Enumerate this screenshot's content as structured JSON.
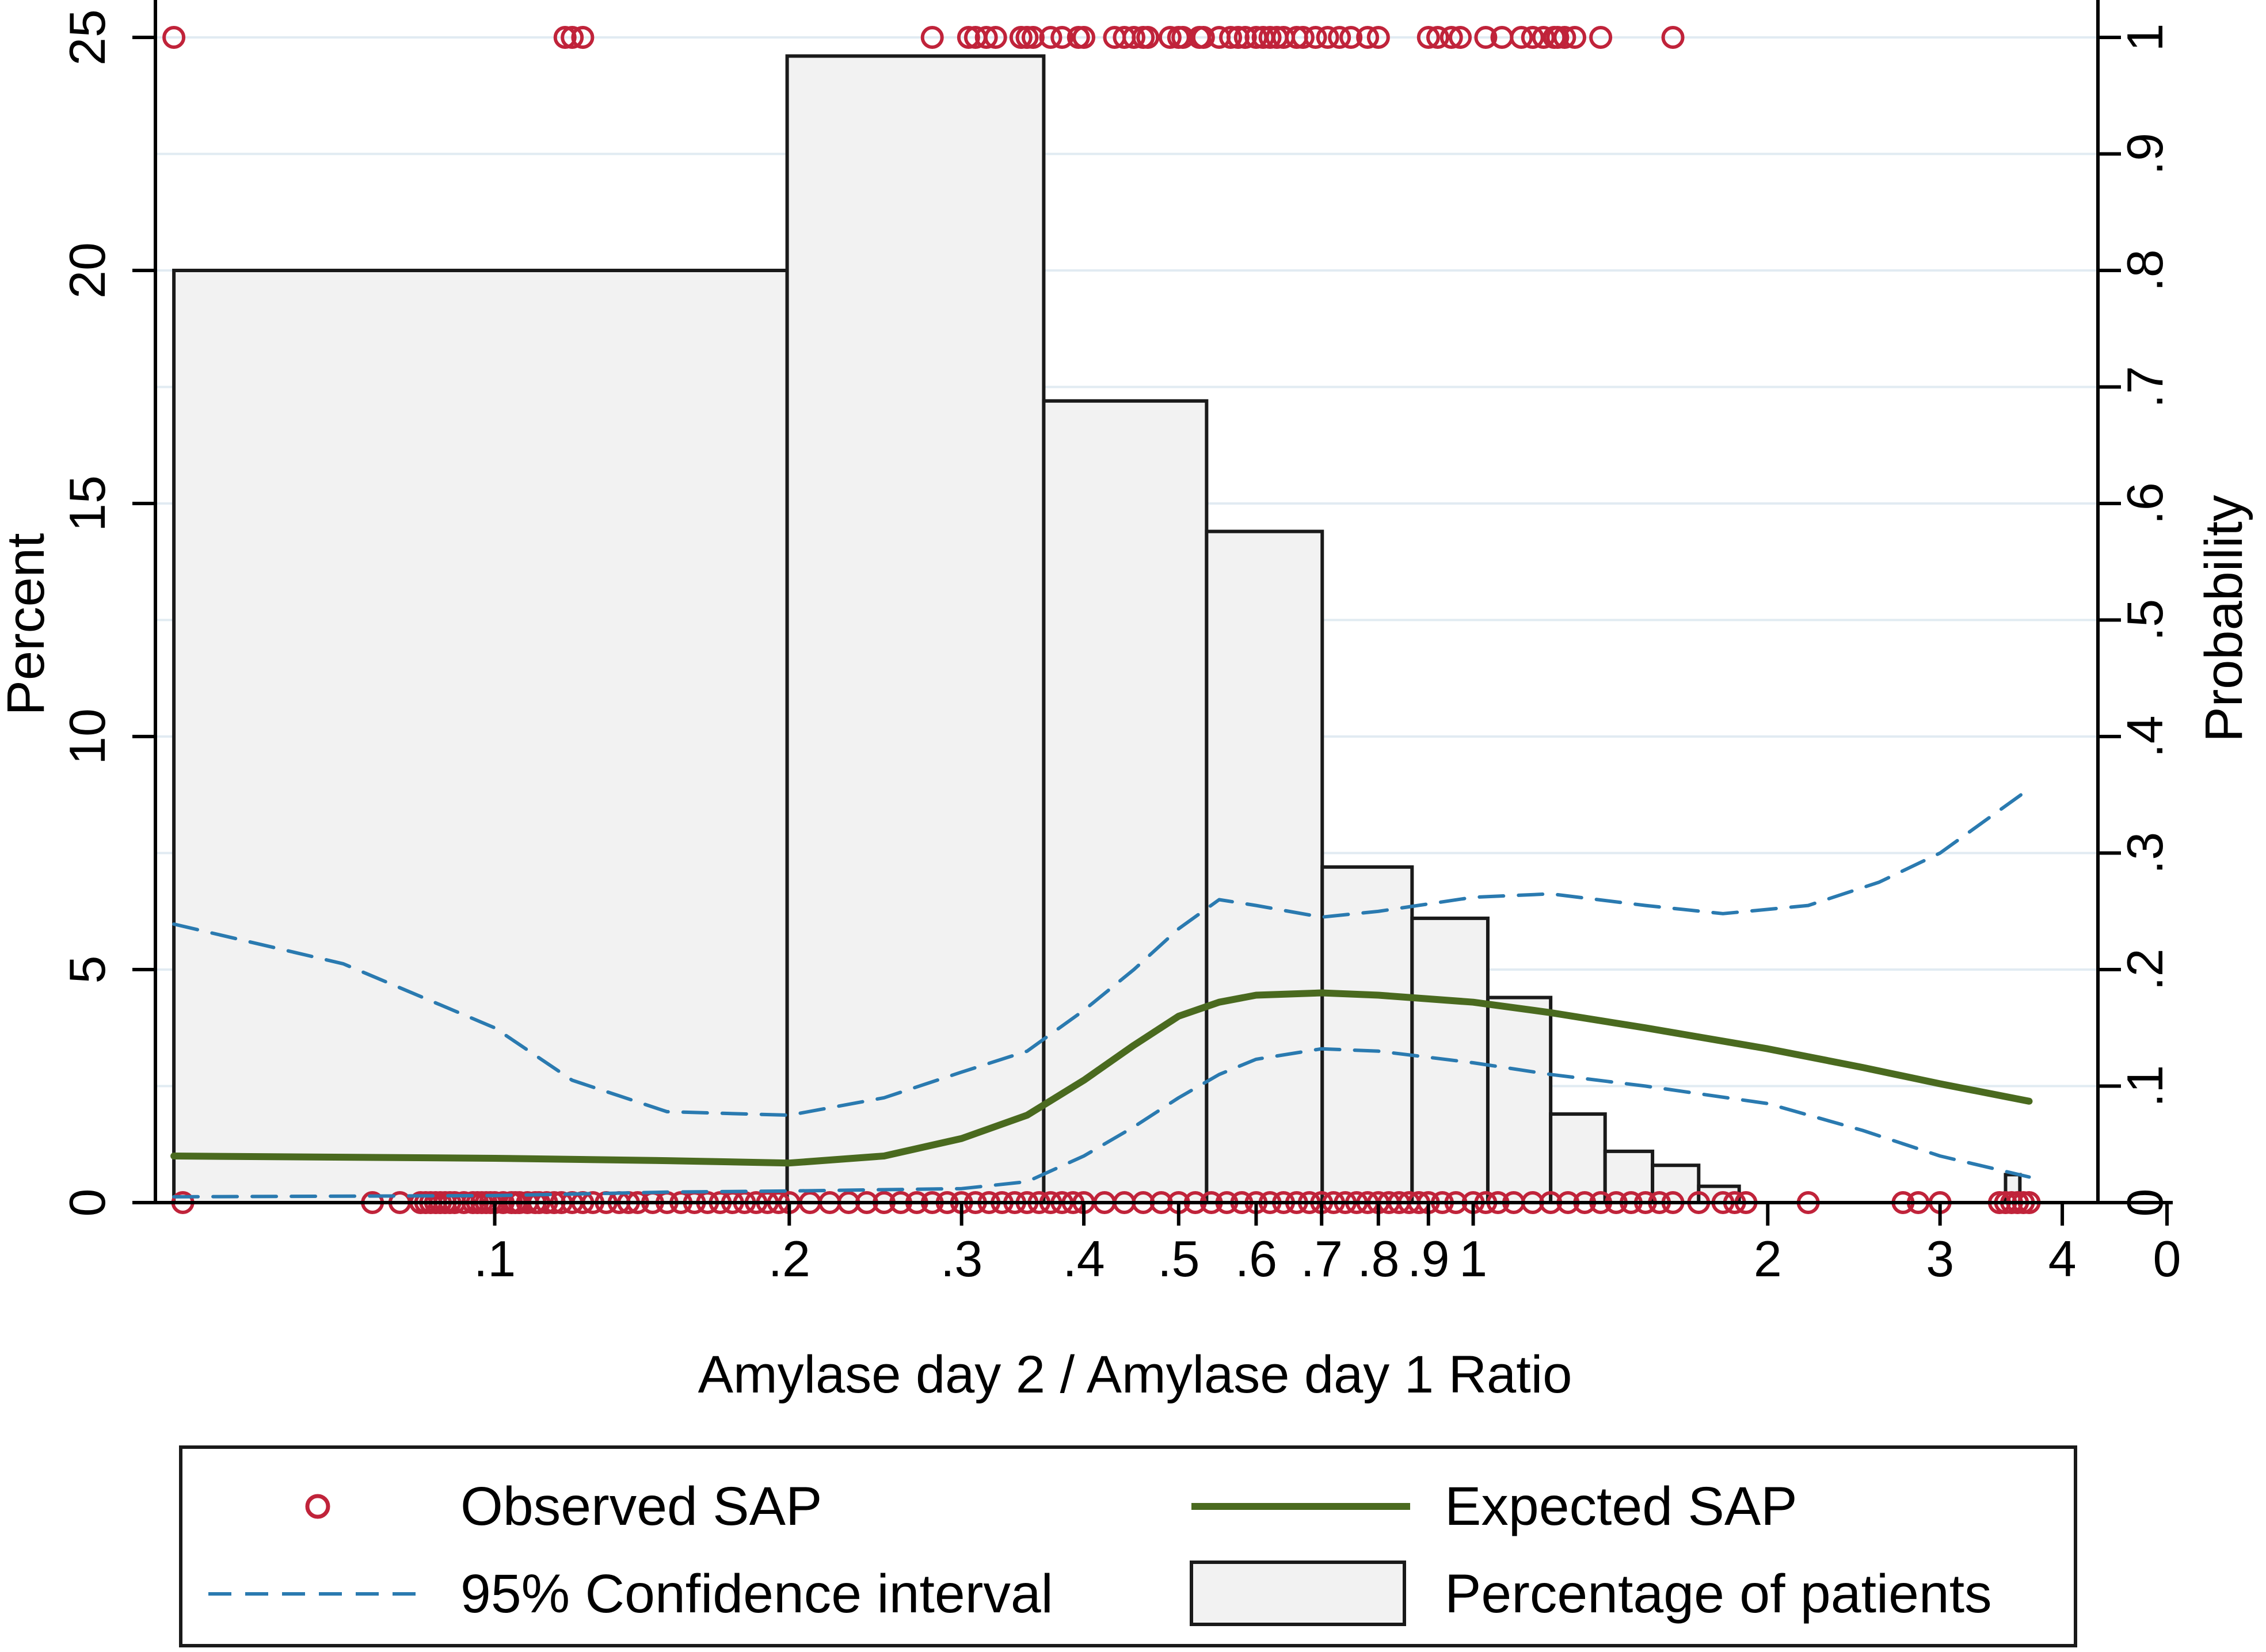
{
  "chart_data": {
    "type": "histogram_with_lines",
    "xlabel": "Amylase day 2 / Amylase day 1 Ratio",
    "ylabel_left": "Percent",
    "ylabel_right": "Probability",
    "x_scale": "log",
    "xlim": [
      0.045,
      4.35
    ],
    "ylim_left": [
      0,
      25
    ],
    "ylim_right": [
      0,
      1
    ],
    "x_ticks": [
      {
        "value": 0.1,
        "label": ".1"
      },
      {
        "value": 0.2,
        "label": ".2"
      },
      {
        "value": 0.3,
        "label": ".3"
      },
      {
        "value": 0.4,
        "label": ".4"
      },
      {
        "value": 0.5,
        "label": ".5"
      },
      {
        "value": 0.6,
        "label": ".6"
      },
      {
        "value": 0.7,
        "label": ".7"
      },
      {
        "value": 0.8,
        "label": ".8"
      },
      {
        "value": 0.9,
        "label": ".9"
      },
      {
        "value": 1.0,
        "label": "1"
      },
      {
        "value": 2,
        "label": "2"
      },
      {
        "value": 3,
        "label": "3"
      },
      {
        "value": 4,
        "label": "4"
      }
    ],
    "x_extra_tick": {
      "label": "0"
    },
    "y_left_ticks": [
      {
        "value": 0,
        "label": "0"
      },
      {
        "value": 5,
        "label": "5"
      },
      {
        "value": 10,
        "label": "10"
      },
      {
        "value": 15,
        "label": "15"
      },
      {
        "value": 20,
        "label": "20"
      },
      {
        "value": 25,
        "label": "25"
      }
    ],
    "y_right_ticks": [
      {
        "value": 0,
        "label": "0"
      },
      {
        "value": 0.1,
        "label": ".1"
      },
      {
        "value": 0.2,
        "label": ".2"
      },
      {
        "value": 0.3,
        "label": ".3"
      },
      {
        "value": 0.4,
        "label": ".4"
      },
      {
        "value": 0.5,
        "label": ".5"
      },
      {
        "value": 0.6,
        "label": ".6"
      },
      {
        "value": 0.7,
        "label": ".7"
      },
      {
        "value": 0.8,
        "label": ".8"
      },
      {
        "value": 0.9,
        "label": ".9"
      },
      {
        "value": 1.0,
        "label": "1"
      }
    ],
    "histogram": {
      "name": "Percentage of patients",
      "bins": [
        {
          "x0": 0.047,
          "x1": 0.199,
          "percent": 20.0
        },
        {
          "x0": 0.199,
          "x1": 0.364,
          "percent": 24.6
        },
        {
          "x0": 0.364,
          "x1": 0.534,
          "percent": 17.2
        },
        {
          "x0": 0.534,
          "x1": 0.701,
          "percent": 14.4
        },
        {
          "x0": 0.701,
          "x1": 0.866,
          "percent": 7.2
        },
        {
          "x0": 0.866,
          "x1": 1.035,
          "percent": 6.1
        },
        {
          "x0": 1.035,
          "x1": 1.2,
          "percent": 4.4
        },
        {
          "x0": 1.2,
          "x1": 1.364,
          "percent": 1.9
        },
        {
          "x0": 1.364,
          "x1": 1.525,
          "percent": 1.1
        },
        {
          "x0": 1.525,
          "x1": 1.7,
          "percent": 0.8
        },
        {
          "x0": 1.7,
          "x1": 1.87,
          "percent": 0.35
        },
        {
          "x0": 3.5,
          "x1": 3.62,
          "percent": 0.6
        }
      ]
    },
    "series": [
      {
        "name": "Expected SAP",
        "style": "solid",
        "color": "#4a6a1f",
        "points": [
          [
            0.047,
            0.04
          ],
          [
            0.1,
            0.038
          ],
          [
            0.15,
            0.036
          ],
          [
            0.2,
            0.034
          ],
          [
            0.25,
            0.04
          ],
          [
            0.3,
            0.055
          ],
          [
            0.35,
            0.075
          ],
          [
            0.4,
            0.105
          ],
          [
            0.45,
            0.135
          ],
          [
            0.5,
            0.16
          ],
          [
            0.55,
            0.172
          ],
          [
            0.6,
            0.178
          ],
          [
            0.7,
            0.18
          ],
          [
            0.8,
            0.178
          ],
          [
            1.0,
            0.172
          ],
          [
            1.2,
            0.163
          ],
          [
            1.5,
            0.15
          ],
          [
            2.0,
            0.132
          ],
          [
            2.5,
            0.116
          ],
          [
            3.0,
            0.102
          ],
          [
            3.7,
            0.087
          ]
        ]
      },
      {
        "name": "95% Confidence interval",
        "style": "dashed",
        "color": "#2a7ab0",
        "points": [
          [
            0.047,
            0.239
          ],
          [
            0.07,
            0.205
          ],
          [
            0.1,
            0.15
          ],
          [
            0.12,
            0.105
          ],
          [
            0.15,
            0.078
          ],
          [
            0.2,
            0.075
          ],
          [
            0.25,
            0.09
          ],
          [
            0.3,
            0.112
          ],
          [
            0.35,
            0.13
          ],
          [
            0.4,
            0.165
          ],
          [
            0.45,
            0.2
          ],
          [
            0.5,
            0.235
          ],
          [
            0.55,
            0.26
          ],
          [
            0.6,
            0.255
          ],
          [
            0.7,
            0.245
          ],
          [
            0.8,
            0.25
          ],
          [
            1.0,
            0.262
          ],
          [
            1.2,
            0.265
          ],
          [
            1.5,
            0.255
          ],
          [
            1.8,
            0.248
          ],
          [
            2.2,
            0.255
          ],
          [
            2.6,
            0.275
          ],
          [
            3.0,
            0.3
          ],
          [
            3.7,
            0.355
          ]
        ]
      },
      {
        "name": "95% Confidence interval (lower)",
        "style": "dashed",
        "color": "#2a7ab0",
        "points": [
          [
            0.047,
            0.005
          ],
          [
            0.1,
            0.006
          ],
          [
            0.15,
            0.009
          ],
          [
            0.2,
            0.01
          ],
          [
            0.3,
            0.012
          ],
          [
            0.35,
            0.018
          ],
          [
            0.4,
            0.04
          ],
          [
            0.45,
            0.065
          ],
          [
            0.5,
            0.09
          ],
          [
            0.55,
            0.11
          ],
          [
            0.6,
            0.123
          ],
          [
            0.7,
            0.132
          ],
          [
            0.8,
            0.13
          ],
          [
            1.0,
            0.12
          ],
          [
            1.2,
            0.11
          ],
          [
            1.5,
            0.1
          ],
          [
            2.0,
            0.085
          ],
          [
            2.5,
            0.062
          ],
          [
            3.0,
            0.04
          ],
          [
            3.7,
            0.022
          ]
        ]
      }
    ],
    "observed": {
      "name": "Observed SAP",
      "color": "#c0233a",
      "ones": [
        0.047,
        0.118,
        0.12,
        0.123,
        0.28,
        0.305,
        0.31,
        0.318,
        0.325,
        0.345,
        0.35,
        0.355,
        0.37,
        0.38,
        0.395,
        0.4,
        0.43,
        0.44,
        0.45,
        0.46,
        0.465,
        0.49,
        0.5,
        0.505,
        0.525,
        0.53,
        0.55,
        0.565,
        0.575,
        0.585,
        0.6,
        0.61,
        0.62,
        0.63,
        0.64,
        0.66,
        0.67,
        0.69,
        0.71,
        0.73,
        0.75,
        0.78,
        0.8,
        0.9,
        0.92,
        0.95,
        0.97,
        1.03,
        1.07,
        1.12,
        1.15,
        1.18,
        1.21,
        1.22,
        1.24,
        1.27,
        1.35,
        1.6
      ],
      "zeros": [
        0.048,
        0.075,
        0.08,
        0.084,
        0.085,
        0.086,
        0.087,
        0.088,
        0.089,
        0.09,
        0.091,
        0.093,
        0.095,
        0.096,
        0.097,
        0.098,
        0.099,
        0.1,
        0.102,
        0.104,
        0.105,
        0.106,
        0.108,
        0.11,
        0.111,
        0.113,
        0.115,
        0.117,
        0.12,
        0.123,
        0.126,
        0.13,
        0.134,
        0.137,
        0.14,
        0.145,
        0.15,
        0.155,
        0.16,
        0.165,
        0.17,
        0.175,
        0.18,
        0.185,
        0.19,
        0.195,
        0.2,
        0.21,
        0.22,
        0.23,
        0.24,
        0.25,
        0.26,
        0.27,
        0.28,
        0.29,
        0.3,
        0.31,
        0.32,
        0.33,
        0.34,
        0.35,
        0.36,
        0.37,
        0.38,
        0.39,
        0.4,
        0.42,
        0.44,
        0.46,
        0.48,
        0.5,
        0.52,
        0.54,
        0.56,
        0.58,
        0.6,
        0.62,
        0.64,
        0.66,
        0.68,
        0.7,
        0.72,
        0.74,
        0.76,
        0.78,
        0.8,
        0.82,
        0.84,
        0.86,
        0.88,
        0.9,
        0.93,
        0.96,
        1.0,
        1.03,
        1.06,
        1.1,
        1.15,
        1.2,
        1.25,
        1.3,
        1.35,
        1.4,
        1.45,
        1.5,
        1.55,
        1.6,
        1.7,
        1.8,
        1.85,
        1.9,
        2.2,
        2.75,
        2.85,
        3.0,
        3.45,
        3.5,
        3.55,
        3.6,
        3.65,
        3.7
      ]
    }
  },
  "legend": {
    "items": [
      {
        "key": "observed",
        "label": "Observed SAP"
      },
      {
        "key": "expected",
        "label": "Expected SAP"
      },
      {
        "key": "ci",
        "label": "95% Confidence interval"
      },
      {
        "key": "hist",
        "label": "Percentage of patients"
      }
    ]
  },
  "colors": {
    "bar_fill": "#f2f2f2",
    "bar_stroke": "#1a1a1a",
    "gridline": "#e1ebf2",
    "observed": "#c0233a",
    "expected": "#4a6a1f",
    "ci": "#2a7ab0"
  }
}
